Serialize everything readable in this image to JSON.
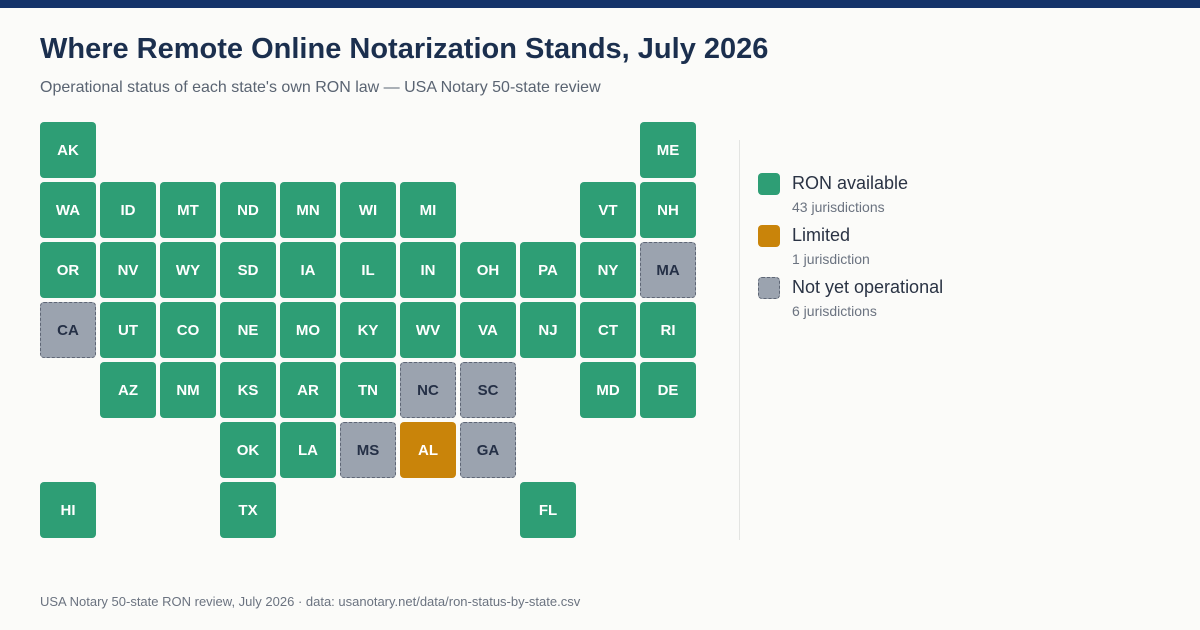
{
  "title": "Where Remote Online Notarization Stands, July 2026",
  "subtitle": "Operational status of each state's own RON law — USA Notary 50-state review",
  "colors": {
    "available": "#2e9e75",
    "limited": "#c9840a",
    "not_yet": "#9ba3af",
    "accent_bar": "#14336a"
  },
  "legend": [
    {
      "status": "available",
      "label": "RON available",
      "count": "43 jurisdictions"
    },
    {
      "status": "limited",
      "label": "Limited",
      "count": "1 jurisdiction"
    },
    {
      "status": "notyet",
      "label": "Not yet operational",
      "count": "6 jurisdictions"
    }
  ],
  "states": [
    {
      "code": "AK",
      "row": 0,
      "col": 0,
      "status": "available"
    },
    {
      "code": "ME",
      "row": 0,
      "col": 10,
      "status": "available"
    },
    {
      "code": "WA",
      "row": 1,
      "col": 0,
      "status": "available"
    },
    {
      "code": "ID",
      "row": 1,
      "col": 1,
      "status": "available"
    },
    {
      "code": "MT",
      "row": 1,
      "col": 2,
      "status": "available"
    },
    {
      "code": "ND",
      "row": 1,
      "col": 3,
      "status": "available"
    },
    {
      "code": "MN",
      "row": 1,
      "col": 4,
      "status": "available"
    },
    {
      "code": "WI",
      "row": 1,
      "col": 5,
      "status": "available"
    },
    {
      "code": "MI",
      "row": 1,
      "col": 6,
      "status": "available"
    },
    {
      "code": "VT",
      "row": 1,
      "col": 9,
      "status": "available"
    },
    {
      "code": "NH",
      "row": 1,
      "col": 10,
      "status": "available"
    },
    {
      "code": "OR",
      "row": 2,
      "col": 0,
      "status": "available"
    },
    {
      "code": "NV",
      "row": 2,
      "col": 1,
      "status": "available"
    },
    {
      "code": "WY",
      "row": 2,
      "col": 2,
      "status": "available"
    },
    {
      "code": "SD",
      "row": 2,
      "col": 3,
      "status": "available"
    },
    {
      "code": "IA",
      "row": 2,
      "col": 4,
      "status": "available"
    },
    {
      "code": "IL",
      "row": 2,
      "col": 5,
      "status": "available"
    },
    {
      "code": "IN",
      "row": 2,
      "col": 6,
      "status": "available"
    },
    {
      "code": "OH",
      "row": 2,
      "col": 7,
      "status": "available"
    },
    {
      "code": "PA",
      "row": 2,
      "col": 8,
      "status": "available"
    },
    {
      "code": "NY",
      "row": 2,
      "col": 9,
      "status": "available"
    },
    {
      "code": "MA",
      "row": 2,
      "col": 10,
      "status": "notyet"
    },
    {
      "code": "CA",
      "row": 3,
      "col": 0,
      "status": "notyet"
    },
    {
      "code": "UT",
      "row": 3,
      "col": 1,
      "status": "available"
    },
    {
      "code": "CO",
      "row": 3,
      "col": 2,
      "status": "available"
    },
    {
      "code": "NE",
      "row": 3,
      "col": 3,
      "status": "available"
    },
    {
      "code": "MO",
      "row": 3,
      "col": 4,
      "status": "available"
    },
    {
      "code": "KY",
      "row": 3,
      "col": 5,
      "status": "available"
    },
    {
      "code": "WV",
      "row": 3,
      "col": 6,
      "status": "available"
    },
    {
      "code": "VA",
      "row": 3,
      "col": 7,
      "status": "available"
    },
    {
      "code": "NJ",
      "row": 3,
      "col": 8,
      "status": "available"
    },
    {
      "code": "CT",
      "row": 3,
      "col": 9,
      "status": "available"
    },
    {
      "code": "RI",
      "row": 3,
      "col": 10,
      "status": "available"
    },
    {
      "code": "AZ",
      "row": 4,
      "col": 1,
      "status": "available"
    },
    {
      "code": "NM",
      "row": 4,
      "col": 2,
      "status": "available"
    },
    {
      "code": "KS",
      "row": 4,
      "col": 3,
      "status": "available"
    },
    {
      "code": "AR",
      "row": 4,
      "col": 4,
      "status": "available"
    },
    {
      "code": "TN",
      "row": 4,
      "col": 5,
      "status": "available"
    },
    {
      "code": "NC",
      "row": 4,
      "col": 6,
      "status": "notyet"
    },
    {
      "code": "SC",
      "row": 4,
      "col": 7,
      "status": "notyet"
    },
    {
      "code": "MD",
      "row": 4,
      "col": 9,
      "status": "available"
    },
    {
      "code": "DE",
      "row": 4,
      "col": 10,
      "status": "available"
    },
    {
      "code": "OK",
      "row": 5,
      "col": 3,
      "status": "available"
    },
    {
      "code": "LA",
      "row": 5,
      "col": 4,
      "status": "available"
    },
    {
      "code": "MS",
      "row": 5,
      "col": 5,
      "status": "notyet"
    },
    {
      "code": "AL",
      "row": 5,
      "col": 6,
      "status": "limited"
    },
    {
      "code": "GA",
      "row": 5,
      "col": 7,
      "status": "notyet"
    },
    {
      "code": "HI",
      "row": 6,
      "col": 0,
      "status": "available"
    },
    {
      "code": "TX",
      "row": 6,
      "col": 3,
      "status": "available"
    },
    {
      "code": "FL",
      "row": 6,
      "col": 8,
      "status": "available"
    }
  ],
  "footer": "USA Notary 50-state RON review, July 2026 · data: usanotary.net/data/ron-status-by-state.csv"
}
